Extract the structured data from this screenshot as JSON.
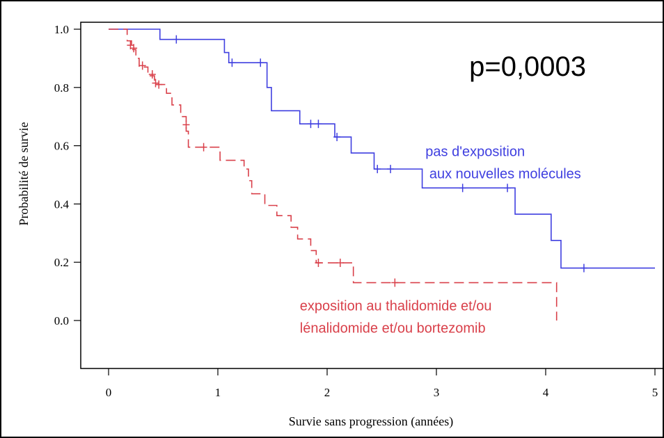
{
  "chart_data": {
    "type": "line",
    "title": "",
    "xlabel": "Survie sans progression (années)",
    "ylabel": "Probabilité de survie",
    "xlim": [
      0,
      5
    ],
    "ylim": [
      -0.15,
      1.03
    ],
    "x_ticks": [
      0,
      1,
      2,
      3,
      4,
      5
    ],
    "x_tick_labels": [
      "0",
      "1",
      "2",
      "3",
      "4",
      "5"
    ],
    "y_ticks": [
      1.0,
      0.8,
      0.6,
      0.4,
      0.2,
      0.0
    ],
    "y_tick_labels": [
      "1.0",
      "0.8",
      "0.6",
      "0.4",
      "0.2",
      "0.0"
    ],
    "grid": false,
    "annotations": [
      {
        "text": "p=0,0003",
        "x": 3.3,
        "y": 0.84,
        "color": "#000000"
      }
    ],
    "series": [
      {
        "name": "pas d'exposition\n aux nouvelles molécules",
        "label_lines": [
          "pas d'exposition",
          " aux nouvelles molécules"
        ],
        "label_x": 2.9,
        "label_y": 0.565,
        "color": "#3f3fe0",
        "dashed": false,
        "steps": [
          [
            0,
            1.0
          ],
          [
            0.47,
            0.965
          ],
          [
            1.06,
            0.92
          ],
          [
            1.1,
            0.885
          ],
          [
            1.45,
            0.8
          ],
          [
            1.49,
            0.72
          ],
          [
            1.75,
            0.675
          ],
          [
            2.07,
            0.63
          ],
          [
            2.22,
            0.575
          ],
          [
            2.43,
            0.52
          ],
          [
            2.87,
            0.455
          ],
          [
            3.72,
            0.365
          ],
          [
            4.05,
            0.275
          ],
          [
            4.14,
            0.18
          ],
          [
            5.0,
            0.18
          ]
        ],
        "censored": [
          [
            0.62,
            0.965
          ],
          [
            1.13,
            0.885
          ],
          [
            1.39,
            0.885
          ],
          [
            1.85,
            0.675
          ],
          [
            1.92,
            0.675
          ],
          [
            2.09,
            0.63
          ],
          [
            2.46,
            0.52
          ],
          [
            2.58,
            0.52
          ],
          [
            3.24,
            0.455
          ],
          [
            3.65,
            0.455
          ],
          [
            4.35,
            0.18
          ]
        ]
      },
      {
        "name": "exposition au thalidomide et/ou\nlénalidomide et/ou bortezomib",
        "label_lines": [
          "exposition au thalidomide et/ou",
          "lénalidomide et/ou bortezomib"
        ],
        "label_x": 1.75,
        "label_y": 0.035,
        "color": "#d9404a",
        "dashed": true,
        "end_drop": [
          4.1,
          0.0
        ],
        "steps": [
          [
            0,
            1.0
          ],
          [
            0.17,
            0.96
          ],
          [
            0.21,
            0.93
          ],
          [
            0.25,
            0.9
          ],
          [
            0.28,
            0.87
          ],
          [
            0.36,
            0.84
          ],
          [
            0.42,
            0.81
          ],
          [
            0.53,
            0.78
          ],
          [
            0.58,
            0.74
          ],
          [
            0.66,
            0.7
          ],
          [
            0.71,
            0.65
          ],
          [
            0.73,
            0.595
          ],
          [
            1.02,
            0.55
          ],
          [
            1.24,
            0.52
          ],
          [
            1.28,
            0.48
          ],
          [
            1.31,
            0.435
          ],
          [
            1.43,
            0.395
          ],
          [
            1.54,
            0.36
          ],
          [
            1.67,
            0.32
          ],
          [
            1.73,
            0.28
          ],
          [
            1.85,
            0.24
          ],
          [
            1.9,
            0.198
          ],
          [
            2.24,
            0.13
          ],
          [
            4.1,
            0.13
          ]
        ],
        "censored": [
          [
            0.2,
            0.945
          ],
          [
            0.23,
            0.935
          ],
          [
            0.31,
            0.875
          ],
          [
            0.4,
            0.845
          ],
          [
            0.43,
            0.815
          ],
          [
            0.46,
            0.81
          ],
          [
            0.71,
            0.672
          ],
          [
            0.87,
            0.595
          ],
          [
            1.92,
            0.198
          ],
          [
            2.12,
            0.198
          ],
          [
            2.62,
            0.13
          ]
        ]
      }
    ]
  }
}
